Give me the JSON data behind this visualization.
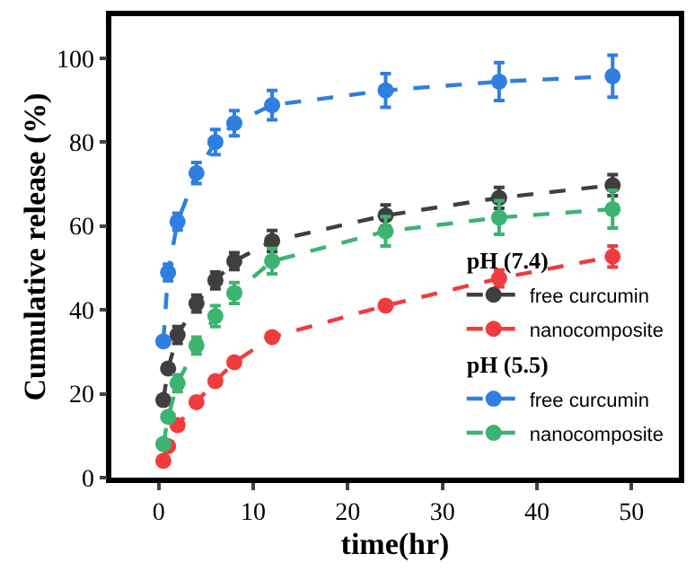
{
  "chart_data": {
    "type": "line",
    "xlabel": "time(hr)",
    "ylabel": "Cumulative release (%)",
    "annotations": [
      "pH (7.4)",
      "pH (5.5)"
    ],
    "x": [
      0.5,
      1,
      2,
      4,
      6,
      8,
      12,
      24,
      36,
      48
    ],
    "xlim": [
      -5,
      55
    ],
    "xticks": [
      0,
      10,
      20,
      30,
      40,
      50
    ],
    "ylim": [
      0,
      110
    ],
    "yticks": [
      0,
      20,
      40,
      60,
      80,
      100
    ],
    "legend": "right",
    "marker": "circle",
    "series": [
      {
        "name": "free curcumin",
        "color": "#3f3f3f",
        "line_style": "dashed",
        "values": [
          18.5,
          26,
          34,
          41.5,
          47,
          51.6,
          56.4,
          62.5,
          66.7,
          69.7
        ],
        "errors": [
          null,
          null,
          2,
          2,
          2,
          2,
          2.5,
          2.5,
          2.5,
          2.5
        ]
      },
      {
        "name": "nanocomposite",
        "color": "#f03c3c",
        "line_style": "dashed",
        "values": [
          4,
          7.5,
          12.5,
          18,
          23,
          27.5,
          33.5,
          41,
          47.5,
          52.7
        ],
        "errors": [
          null,
          null,
          null,
          null,
          null,
          null,
          null,
          null,
          2,
          2.5
        ]
      },
      {
        "name": "free curcumin",
        "color": "#2f7fe0",
        "line_style": "dashed",
        "values": [
          32.5,
          48.9,
          61,
          72.6,
          80,
          84.5,
          88.8,
          92.3,
          94.4,
          95.7
        ],
        "errors": [
          null,
          2,
          2,
          2.5,
          3,
          3,
          3.5,
          4,
          4.5,
          5
        ]
      },
      {
        "name": "nanocomposite",
        "color": "#3cb371",
        "line_style": "dashed",
        "values": [
          8,
          14.5,
          22.5,
          31.5,
          38.5,
          44,
          51.6,
          58.7,
          62,
          64
        ],
        "errors": [
          null,
          null,
          2,
          2,
          2.5,
          2.5,
          3,
          3.5,
          4,
          4.5
        ]
      }
    ]
  }
}
